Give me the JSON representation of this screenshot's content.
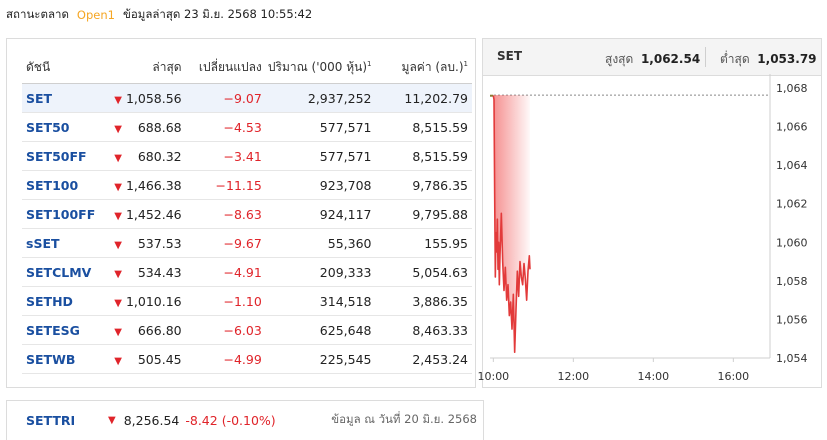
{
  "market_status": {
    "label": "สถานะตลาด",
    "state": "Open1",
    "updated": "ข้อมูลล่าสุด 23 มิ.ย. 2568 10:55:42"
  },
  "table": {
    "headers": {
      "name": "ดัชนี",
      "last": "ล่าสุด",
      "change": "เปลี่ยนแปลง",
      "volume": "ปริมาณ ('000 หุ้น)",
      "value": "มูลค่า (ลบ.)",
      "footnote": "1"
    },
    "rows": [
      {
        "name": "SET",
        "last": "1,058.56",
        "change": "-9.07",
        "volume": "2,937,252",
        "value": "11,202.79"
      },
      {
        "name": "SET50",
        "last": "688.68",
        "change": "-4.53",
        "volume": "577,571",
        "value": "8,515.59"
      },
      {
        "name": "SET50FF",
        "last": "680.32",
        "change": "-3.41",
        "volume": "577,571",
        "value": "8,515.59"
      },
      {
        "name": "SET100",
        "last": "1,466.38",
        "change": "-11.15",
        "volume": "923,708",
        "value": "9,786.35"
      },
      {
        "name": "SET100FF",
        "last": "1,452.46",
        "change": "-8.63",
        "volume": "924,117",
        "value": "9,795.88"
      },
      {
        "name": "sSET",
        "last": "537.53",
        "change": "-9.67",
        "volume": "55,360",
        "value": "155.95"
      },
      {
        "name": "SETCLMV",
        "last": "534.43",
        "change": "-4.91",
        "volume": "209,333",
        "value": "5,054.63"
      },
      {
        "name": "SETHD",
        "last": "1,010.16",
        "change": "-1.10",
        "volume": "314,518",
        "value": "3,886.35"
      },
      {
        "name": "SETESG",
        "last": "666.80",
        "change": "-6.03",
        "volume": "625,648",
        "value": "8,463.33"
      },
      {
        "name": "SETWB",
        "last": "505.45",
        "change": "-4.99",
        "volume": "225,545",
        "value": "2,453.24"
      }
    ]
  },
  "settri": {
    "name": "SETTRI",
    "last": "8,256.54",
    "change": "-8.42 (-0.10%)",
    "as_of": "ข้อมูล ณ วันที่ 20 มิ.ย. 2568"
  },
  "chart_header": {
    "symbol": "SET",
    "high_label": "สูงสุด",
    "high": "1,062.54",
    "low_label": "ต่ำสุด",
    "low": "1,053.79"
  },
  "icons": {
    "down": "down-triangle-icon"
  },
  "colors": {
    "negative": "#e0242a",
    "link": "#1a4fa0",
    "open": "#f5a623"
  },
  "chart_data": {
    "type": "area",
    "x_ticks": [
      "10:00",
      "12:00",
      "14:00",
      "16:00"
    ],
    "y_ticks": [
      "1,054",
      "1,056",
      "1,058",
      "1,060",
      "1,062",
      "1,064",
      "1,066",
      "1,068"
    ],
    "ylim": [
      1054,
      1068
    ],
    "xlim": [
      "09:55",
      "16:55"
    ],
    "reference_value": 1067.63,
    "series": [
      {
        "x": [
          "09:55",
          "09:56",
          "09:57",
          "09:58",
          "09:59",
          "10:00",
          "10:01",
          "10:02",
          "10:03",
          "10:04",
          "10:05",
          "10:06",
          "10:07",
          "10:08",
          "10:09",
          "10:10",
          "10:12",
          "10:14",
          "10:16",
          "10:18",
          "10:20",
          "10:22",
          "10:24",
          "10:26",
          "10:28",
          "10:30",
          "10:32",
          "10:34",
          "10:36",
          "10:38",
          "10:40",
          "10:42",
          "10:44",
          "10:46",
          "10:48",
          "10:50",
          "10:52",
          "10:54",
          "10:55"
        ],
        "values": [
          1067.6,
          1067.6,
          1067.6,
          1067.6,
          1067.6,
          1067.6,
          1067.4,
          1062.5,
          1058.2,
          1060.5,
          1059.5,
          1061.2,
          1058.6,
          1060.0,
          1057.8,
          1059.3,
          1061.5,
          1059.0,
          1057.5,
          1058.7,
          1057.0,
          1057.8,
          1056.2,
          1056.9,
          1055.5,
          1057.3,
          1054.3,
          1056.5,
          1058.5,
          1057.2,
          1059.0,
          1058.2,
          1057.8,
          1058.9,
          1058.1,
          1057.0,
          1058.5,
          1059.3,
          1058.6
        ]
      }
    ]
  }
}
